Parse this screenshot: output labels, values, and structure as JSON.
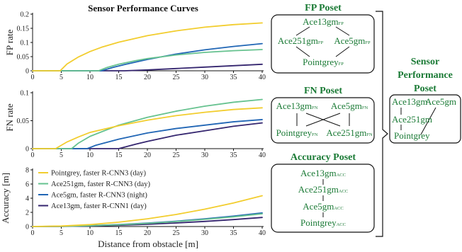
{
  "colors": {
    "pointgrey": "#f2cd2e",
    "ace251gm": "#66c28f",
    "ace5gm": "#2166b5",
    "ace13gm": "#35266f",
    "poset_green": "#1a7a35"
  },
  "chart_data": [
    {
      "type": "line",
      "title": "Sensor Performance Curves",
      "ylabel": "FP rate",
      "xlim": [
        0,
        40
      ],
      "ylim": [
        0,
        0.2
      ],
      "xticks": [
        "0",
        "5",
        "10",
        "15",
        "20",
        "25",
        "30",
        "35",
        "40"
      ],
      "yticks": [
        "0",
        "0.05",
        "0.1",
        "0.15",
        "0.2"
      ],
      "series": [
        {
          "name": "Pointgrey, faster R-CNN3 (day)",
          "x": [
            0,
            4.8,
            6,
            8,
            10,
            12,
            15,
            20,
            25,
            30,
            35,
            40
          ],
          "y": [
            0,
            0,
            0.024,
            0.049,
            0.068,
            0.083,
            0.101,
            0.124,
            0.141,
            0.154,
            0.163,
            0.169
          ]
        },
        {
          "name": "Ace251gm, faster R-CNN3 (day)",
          "x": [
            0,
            11.5,
            13,
            15,
            18,
            20,
            25,
            30,
            35,
            40
          ],
          "y": [
            0,
            0,
            0.012,
            0.023,
            0.036,
            0.043,
            0.056,
            0.065,
            0.071,
            0.075
          ]
        },
        {
          "name": "Ace5gm, faster R-CNN3 (night)",
          "x": [
            0,
            12,
            14,
            16,
            20,
            25,
            30,
            35,
            40
          ],
          "y": [
            0,
            0,
            0.012,
            0.022,
            0.04,
            0.059,
            0.074,
            0.086,
            0.096
          ]
        },
        {
          "name": "Ace13gm, faster R-CNN1 (day)",
          "x": [
            0,
            16,
            20,
            25,
            30,
            35,
            40
          ],
          "y": [
            0,
            0,
            0.003,
            0.008,
            0.013,
            0.018,
            0.023
          ]
        }
      ]
    },
    {
      "type": "line",
      "ylabel": "FN rate",
      "xlim": [
        0,
        40
      ],
      "ylim": [
        0,
        0.1
      ],
      "xticks": [
        "0",
        "5",
        "10",
        "15",
        "20",
        "25",
        "30",
        "35",
        "40"
      ],
      "yticks": [
        "0",
        "0.05",
        "0.1"
      ],
      "series": [
        {
          "name": "Pointgrey, faster R-CNN3 (day)",
          "x": [
            0,
            4,
            6,
            8,
            10,
            15,
            20,
            25,
            30,
            35,
            40
          ],
          "y": [
            0,
            0,
            0.012,
            0.021,
            0.029,
            0.041,
            0.051,
            0.059,
            0.065,
            0.07,
            0.073
          ]
        },
        {
          "name": "Ace251gm, faster R-CNN3 (day)",
          "x": [
            0,
            6.8,
            8,
            10,
            15,
            20,
            25,
            30,
            35,
            40
          ],
          "y": [
            0,
            0,
            0.01,
            0.022,
            0.042,
            0.056,
            0.067,
            0.076,
            0.083,
            0.088
          ]
        },
        {
          "name": "Ace5gm, faster R-CNN3 (night)",
          "x": [
            0,
            9.5,
            11,
            15,
            20,
            25,
            30,
            35,
            40
          ],
          "y": [
            0,
            0,
            0.006,
            0.017,
            0.028,
            0.036,
            0.042,
            0.048,
            0.052
          ]
        },
        {
          "name": "Ace13gm, faster R-CNN1 (day)",
          "x": [
            0,
            15,
            18,
            20,
            25,
            30,
            35,
            40
          ],
          "y": [
            0,
            0,
            0.008,
            0.013,
            0.024,
            0.032,
            0.04,
            0.046
          ]
        }
      ]
    },
    {
      "type": "line",
      "xlabel": "Distance from obstacle [m]",
      "ylabel": "Accuracy [m]",
      "xlim": [
        0,
        40
      ],
      "ylim": [
        0,
        8
      ],
      "xticks": [
        "0",
        "5",
        "10",
        "15",
        "20",
        "25",
        "30",
        "35",
        "40"
      ],
      "yticks": [
        "0",
        "2",
        "4",
        "6",
        "8"
      ],
      "legend": "upper-left",
      "series": [
        {
          "name": "Pointgrey, faster R-CNN3 (day)",
          "x": [
            0,
            5,
            10,
            15,
            20,
            25,
            30,
            35,
            40
          ],
          "y": [
            0,
            0.07,
            0.27,
            0.61,
            1.09,
            1.7,
            2.45,
            3.33,
            4.35
          ]
        },
        {
          "name": "Ace251gm, faster R-CNN3 (day)",
          "x": [
            0,
            5,
            10,
            15,
            20,
            25,
            30,
            35,
            40
          ],
          "y": [
            0,
            0.03,
            0.11,
            0.25,
            0.45,
            0.7,
            1.01,
            1.37,
            1.8
          ]
        },
        {
          "name": "Ace5gm, faster R-CNN3 (night)",
          "x": [
            0,
            5,
            10,
            15,
            20,
            25,
            30,
            35,
            40
          ],
          "y": [
            0,
            0.03,
            0.12,
            0.27,
            0.48,
            0.75,
            1.08,
            1.47,
            1.92
          ]
        },
        {
          "name": "Ace13gm, faster R-CNN1 (day)",
          "x": [
            0,
            5,
            10,
            15,
            20,
            25,
            30,
            35,
            40
          ],
          "y": [
            0,
            0.02,
            0.08,
            0.18,
            0.32,
            0.5,
            0.72,
            0.98,
            1.28
          ]
        }
      ]
    }
  ],
  "posets": {
    "fp": {
      "title": "FP Poset",
      "top": "Ace13gm",
      "left": "Ace251gm",
      "right": "Ace5gm",
      "bottom": "Pointgrey",
      "sub": "FP"
    },
    "fn": {
      "title": "FN Poset",
      "top_left": "Ace13gm",
      "top_right": "Ace5gm",
      "bottom_left": "Pointgrey",
      "bottom_right": "Ace251gm",
      "sub": "FN"
    },
    "acc": {
      "title": "Accuracy Poset",
      "n1": "Ace13gm",
      "n2": "Ace251gm",
      "n3": "Ace5gm",
      "n4": "Pointgrey",
      "sub": "ACC"
    },
    "sensor": {
      "title_1": "Sensor",
      "title_2": "Performance",
      "title_3": "Poset",
      "top_left": "Ace13gm",
      "top_right": "Ace5gm",
      "mid": "Ace251gm",
      "bottom": "Pointgrey"
    }
  }
}
